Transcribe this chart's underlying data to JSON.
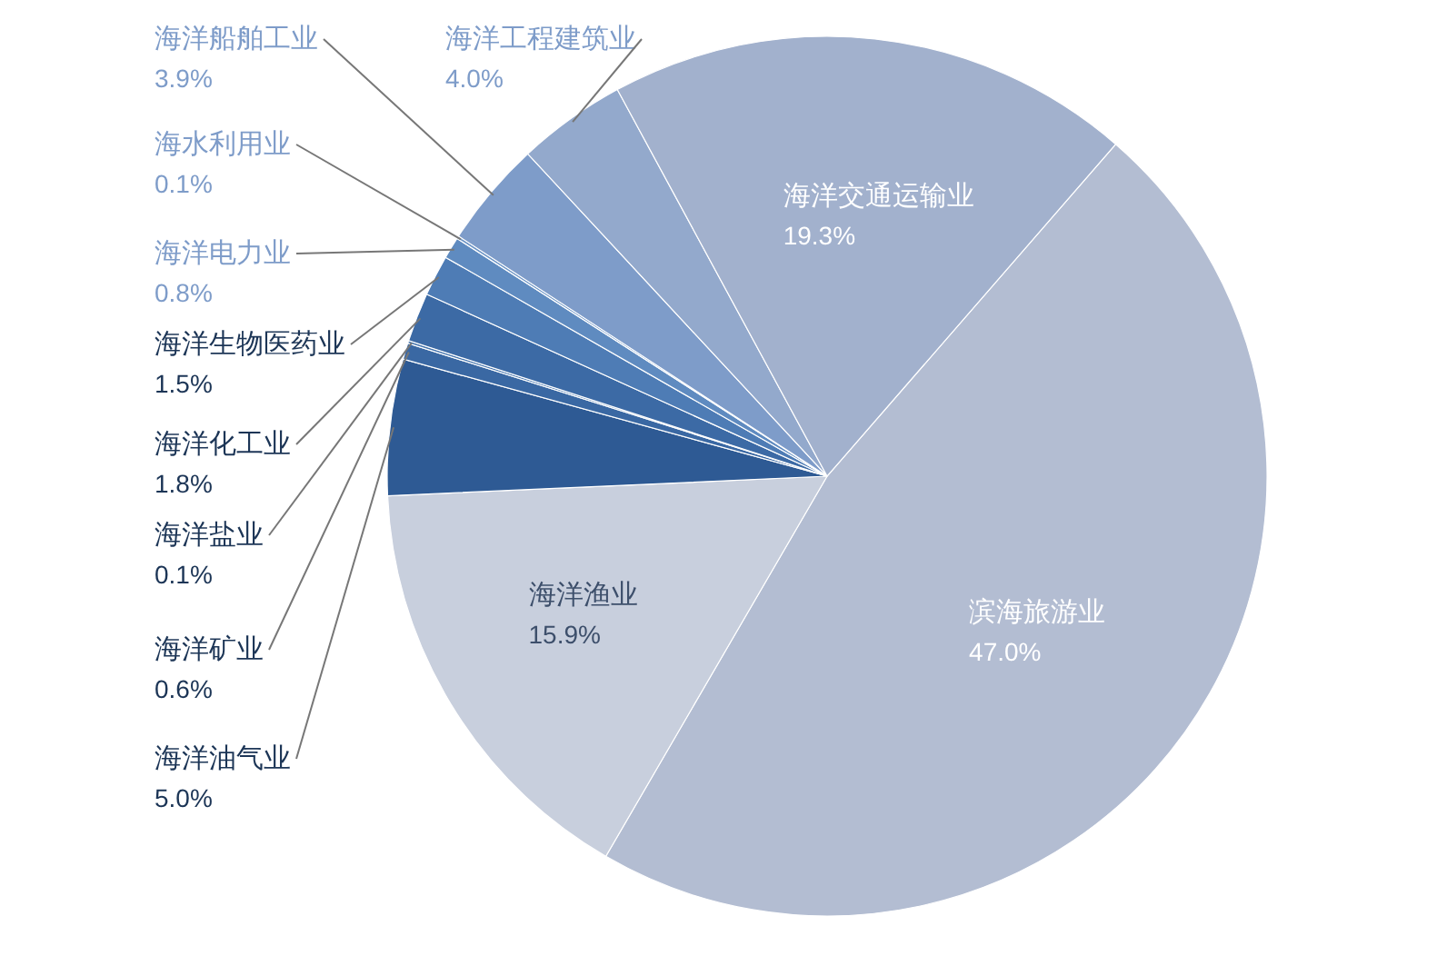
{
  "chart_data": {
    "type": "pie",
    "categories": [
      "滨海旅游业",
      "海洋渔业",
      "海洋油气业",
      "海洋矿业",
      "海洋盐业",
      "海洋化工业",
      "海洋生物医药业",
      "海洋电力业",
      "海水利用业",
      "海洋船舶工业",
      "海洋工程建筑业",
      "海洋交通运输业"
    ],
    "values": [
      47.0,
      15.9,
      5.0,
      0.6,
      0.1,
      1.8,
      1.5,
      0.8,
      0.1,
      3.9,
      4.0,
      19.3
    ],
    "value_labels": [
      "47.0%",
      "15.9%",
      "5.0%",
      "0.6%",
      "0.1%",
      "1.8%",
      "1.5%",
      "0.8%",
      "0.1%",
      "3.9%",
      "4.0%",
      "19.3%"
    ],
    "colors": [
      "#b3bdd2",
      "#c8cfdd",
      "#2e5a94",
      "#3a68a3",
      "#4574ad",
      "#3c6aa5",
      "#4e7cb5",
      "#5f8bc0",
      "#6d95c6",
      "#7e9cc9",
      "#93a9cc",
      "#a2b1cd"
    ],
    "legend": false
  }
}
